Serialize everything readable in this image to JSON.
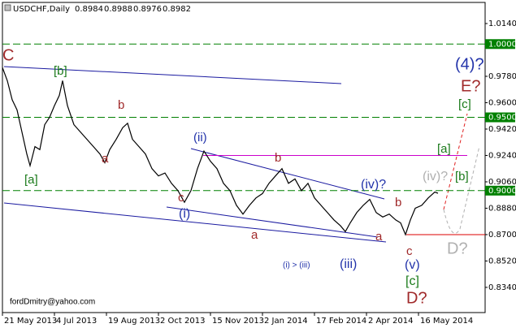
{
  "chart_data": {
    "type": "line",
    "title": "USDCHF,Daily",
    "ohlc": [
      0.8984,
      0.8988,
      0.8976,
      0.8982
    ],
    "color": "#000000",
    "x": [
      0,
      3,
      6,
      9,
      12,
      15,
      17,
      20,
      23,
      26,
      29,
      32,
      35,
      37,
      40,
      44,
      48,
      52,
      56,
      60,
      63,
      66,
      70,
      74,
      77,
      80,
      84,
      88,
      92,
      96,
      100,
      104,
      108,
      112,
      116,
      120,
      124,
      128,
      132,
      136,
      140,
      144,
      148,
      152,
      156,
      160,
      164,
      168,
      172,
      176,
      180,
      184,
      188,
      192,
      196,
      200,
      204,
      208,
      211,
      214,
      218,
      222,
      226,
      230,
      234,
      238,
      242,
      245,
      248,
      251,
      254,
      258,
      262,
      266,
      268
    ],
    "values": [
      0.984,
      0.975,
      0.962,
      0.955,
      0.94,
      0.925,
      0.917,
      0.93,
      0.928,
      0.945,
      0.95,
      0.958,
      0.965,
      0.975,
      0.958,
      0.945,
      0.94,
      0.935,
      0.93,
      0.925,
      0.919,
      0.928,
      0.935,
      0.943,
      0.946,
      0.935,
      0.93,
      0.925,
      0.915,
      0.91,
      0.912,
      0.905,
      0.9,
      0.892,
      0.9,
      0.915,
      0.927,
      0.92,
      0.915,
      0.905,
      0.9,
      0.89,
      0.884,
      0.89,
      0.895,
      0.898,
      0.905,
      0.91,
      0.915,
      0.905,
      0.908,
      0.9,
      0.905,
      0.895,
      0.89,
      0.885,
      0.88,
      0.876,
      0.872,
      0.878,
      0.885,
      0.89,
      0.894,
      0.885,
      0.882,
      0.884,
      0.88,
      0.878,
      0.87,
      0.88,
      0.888,
      0.89,
      0.895,
      0.899,
      0.8982
    ],
    "xlim": [
      0,
      297
    ],
    "xticks": [
      {
        "value": 0,
        "label": "21 May 2013"
      },
      {
        "value": 32,
        "label": "4 Jul 2013"
      },
      {
        "value": 64,
        "label": "19 Aug 2013"
      },
      {
        "value": 96,
        "label": "2 Oct 2013"
      },
      {
        "value": 128,
        "label": "15 Nov 2013"
      },
      {
        "value": 160,
        "label": "2 Jan 2014"
      },
      {
        "value": 192,
        "label": "17 Feb 2014"
      },
      {
        "value": 224,
        "label": "2 Apr 2014"
      },
      {
        "value": 256,
        "label": "16 May 2014"
      }
    ],
    "ylim": [
      0.8168,
      1.0284
    ],
    "yticks": [
      {
        "value": 1.014,
        "label": "1.0140"
      },
      {
        "value": 0.978,
        "label": "0.9780"
      },
      {
        "value": 0.96,
        "label": "0.9600"
      },
      {
        "value": 0.942,
        "label": "0.9420"
      },
      {
        "value": 0.924,
        "label": "0.9240"
      },
      {
        "value": 0.906,
        "label": "0.9060"
      },
      {
        "value": 0.888,
        "label": "0.8880"
      },
      {
        "value": 0.87,
        "label": "0.8700"
      },
      {
        "value": 0.852,
        "label": "0.8520"
      },
      {
        "value": 0.834,
        "label": "0.8340"
      }
    ],
    "levels": [
      {
        "value": 1.0,
        "label": "1.0000",
        "color": "#008000"
      },
      {
        "value": 0.95,
        "label": "0.9500",
        "color": "#008000"
      },
      {
        "value": 0.9,
        "label": "0.9000",
        "color": "#008000"
      },
      {
        "value": 0.924,
        "color": "#cc00cc"
      },
      {
        "value": 0.87,
        "color": "#dd0000"
      }
    ],
    "annotations": [
      {
        "text": "C",
        "color": "#a0292a"
      },
      {
        "text": "[b]",
        "color": "#1a7a1a"
      },
      {
        "text": "b",
        "color": "#a0292a"
      },
      {
        "text": "[a]",
        "color": "#1a7a1a"
      },
      {
        "text": "a",
        "color": "#a0292a"
      },
      {
        "text": "(ii)",
        "color": "#2233aa"
      },
      {
        "text": "c",
        "color": "#a0292a"
      },
      {
        "text": "(i)",
        "color": "#2233aa"
      },
      {
        "text": "b",
        "color": "#a0292a"
      },
      {
        "text": "a",
        "color": "#a0292a"
      },
      {
        "text": "(i) > (iii)",
        "color": "#2233aa"
      },
      {
        "text": "(iii)",
        "color": "#2233aa"
      },
      {
        "text": "(iv)?",
        "color": "#2233aa"
      },
      {
        "text": "b",
        "color": "#a0292a"
      },
      {
        "text": "a",
        "color": "#a0292a"
      },
      {
        "text": "c",
        "color": "#a0292a"
      },
      {
        "text": "(v)",
        "color": "#2233aa"
      },
      {
        "text": "[c]",
        "color": "#1a7a1a"
      },
      {
        "text": "D?",
        "color": "#a0292a"
      },
      {
        "text": "(4)?",
        "color": "#2233aa"
      },
      {
        "text": "E?",
        "color": "#a0292a"
      },
      {
        "text": "[c]",
        "color": "#1a7a1a"
      },
      {
        "text": "[a]",
        "color": "#1a7a1a"
      },
      {
        "text": "(iv)?",
        "color": "#b0b0b0"
      },
      {
        "text": "[b]",
        "color": "#1a7a1a"
      },
      {
        "text": "D?",
        "color": "#b0b0b0"
      },
      {
        "text": "fordDmitry@yahoo.com",
        "color": "#000000"
      }
    ]
  }
}
